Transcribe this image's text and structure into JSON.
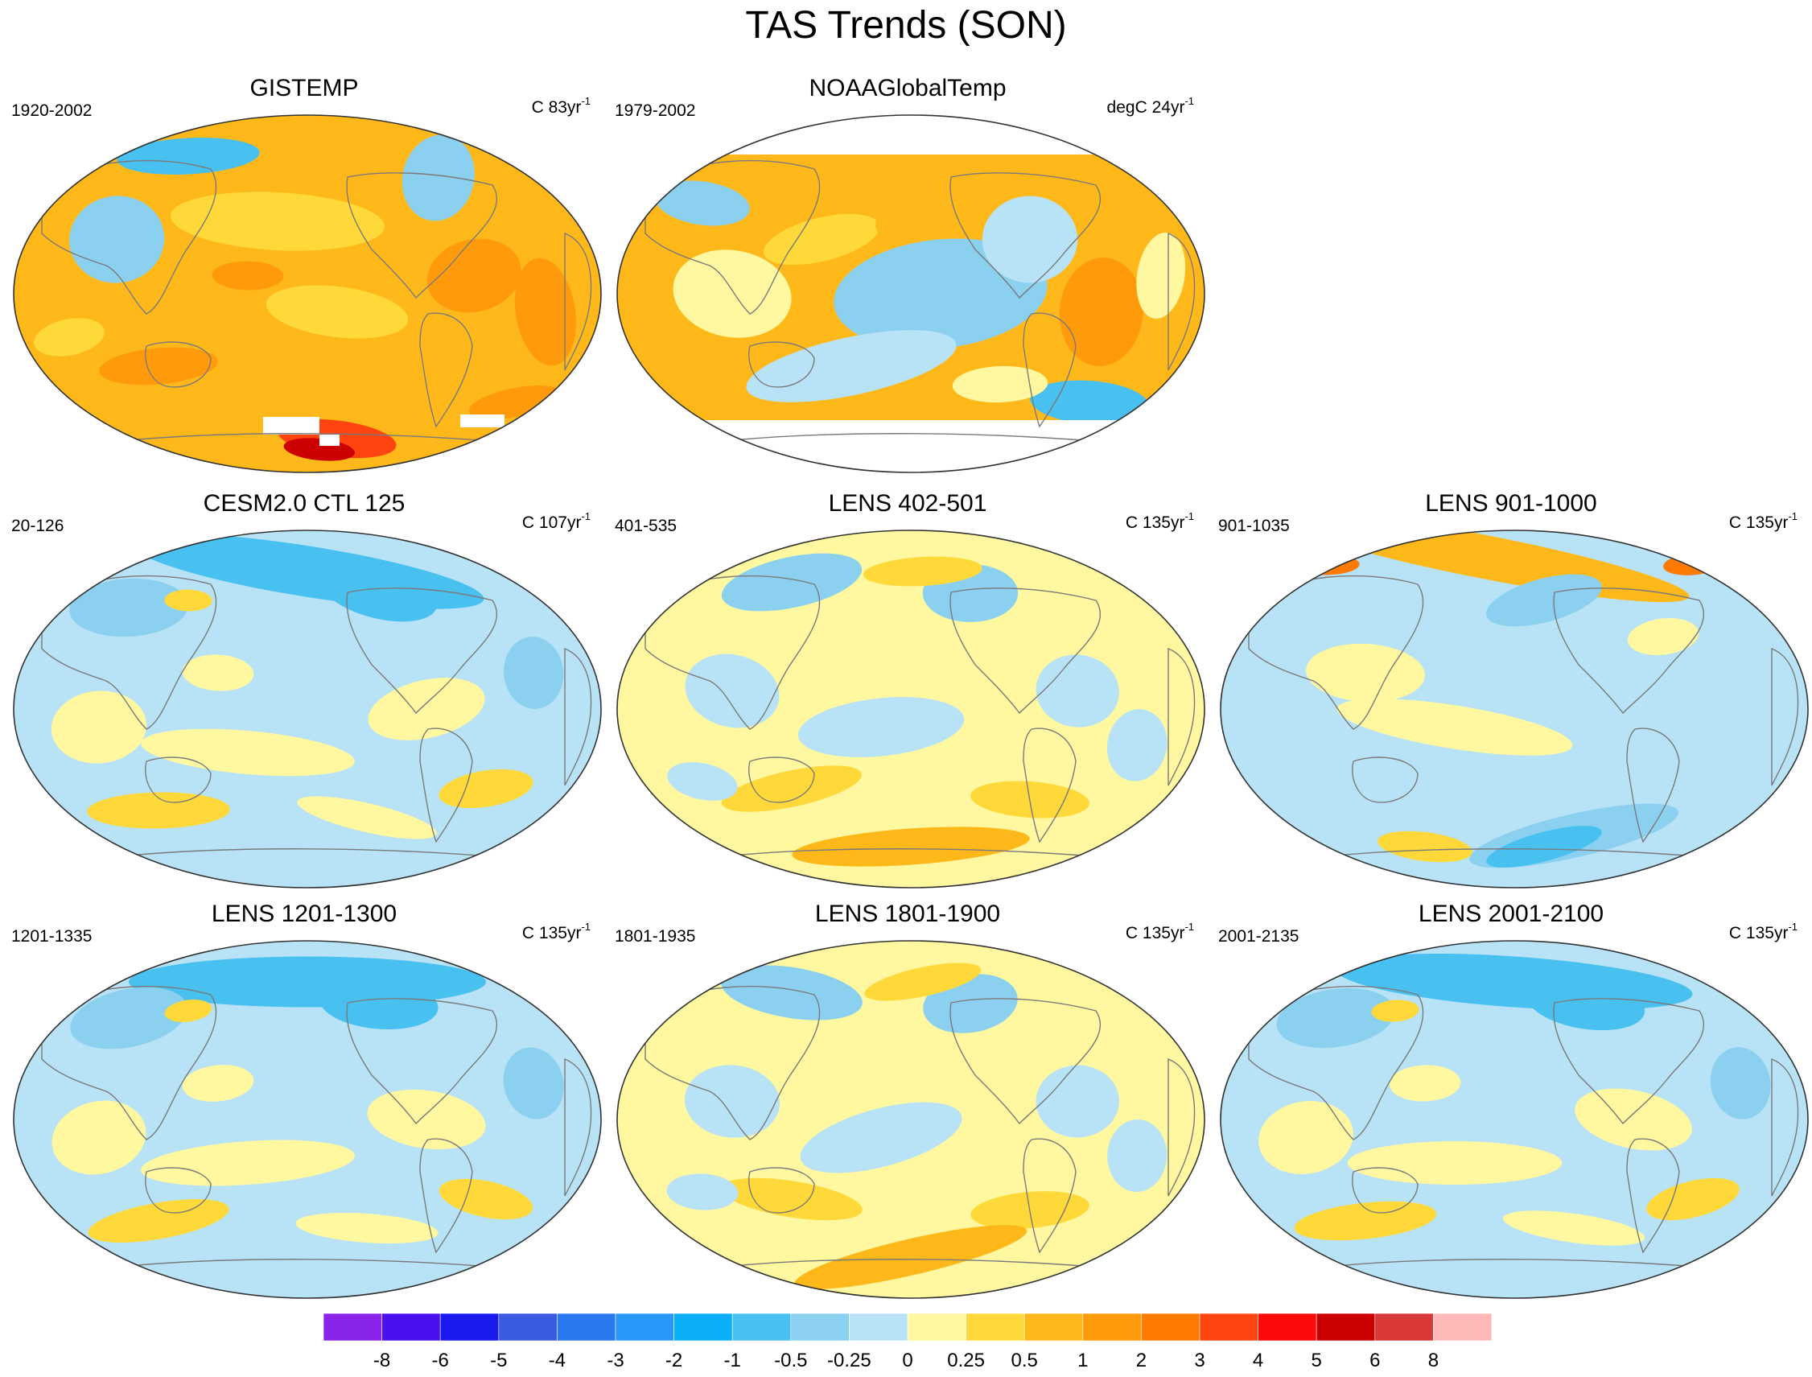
{
  "figure_title": "TAS Trends (SON)",
  "panels": [
    {
      "name": "panel-gistemp",
      "title": "GISTEMP",
      "left_label": "1920-2002",
      "right_label": "C 83yr",
      "right_sup": "-1",
      "base": "warm",
      "missing": "antarctic-patches"
    },
    {
      "name": "panel-noaa",
      "title": "NOAAGlobalTemp",
      "left_label": "1979-2002",
      "right_label": "degC 24yr",
      "right_sup": "-1",
      "base": "mixed-warm",
      "missing": "polar"
    },
    {
      "name": "panel-cesm2",
      "title": "CESM2.0 CTL 125",
      "left_label": "20-126",
      "right_label": "C 107yr",
      "right_sup": "-1",
      "base": "cool"
    },
    {
      "name": "panel-lens-402",
      "title": "LENS 402-501",
      "left_label": "401-535",
      "right_label": "C 135yr",
      "right_sup": "-1",
      "base": "mild"
    },
    {
      "name": "panel-lens-901",
      "title": "LENS 901-1000",
      "left_label": "901-1035",
      "right_label": "C 135yr",
      "right_sup": "-1",
      "base": "cool-arctic-warm"
    },
    {
      "name": "panel-lens-1201",
      "title": "LENS 1201-1300",
      "left_label": "1201-1335",
      "right_label": "C 135yr",
      "right_sup": "-1",
      "base": "cool"
    },
    {
      "name": "panel-lens-1801",
      "title": "LENS 1801-1900",
      "left_label": "1801-1935",
      "right_label": "C 135yr",
      "right_sup": "-1",
      "base": "mild"
    },
    {
      "name": "panel-lens-2001",
      "title": "LENS 2001-2100",
      "left_label": "2001-2135",
      "right_label": "C 135yr",
      "right_sup": "-1",
      "base": "cool"
    }
  ],
  "colorbar": {
    "labels": [
      "-8",
      "-6",
      "-5",
      "-4",
      "-3",
      "-2",
      "-1",
      "-0.5",
      "-0.25",
      "0",
      "0.25",
      "0.5",
      "1",
      "2",
      "3",
      "4",
      "5",
      "6",
      "8"
    ],
    "colors": [
      "#8a24e8",
      "#4a10f0",
      "#1a1af0",
      "#3a5ae0",
      "#2a78f0",
      "#2a98f8",
      "#0aaff5",
      "#48c0f0",
      "#8cd0f0",
      "#b8e2f6",
      "#fff8a0",
      "#ffd83a",
      "#ffb81a",
      "#ff9a0a",
      "#ff7a00",
      "#ff4410",
      "#ff0a0a",
      "#cc0000",
      "#d83838",
      "#ffb8b8"
    ]
  },
  "colors": {
    "c_neg1": "#48c0f0",
    "c_neg05": "#8cd0f0",
    "c_neg025": "#b8e2f6",
    "c_0": "#fff8a0",
    "c_025": "#ffd83a",
    "c_05": "#ffb81a",
    "c_1": "#ff9a0a",
    "c_2": "#ff7a00",
    "c_3": "#ff4410",
    "c_neg2": "#2a98f8",
    "c_neg3": "#2a78f0",
    "c_5": "#cc0000"
  }
}
